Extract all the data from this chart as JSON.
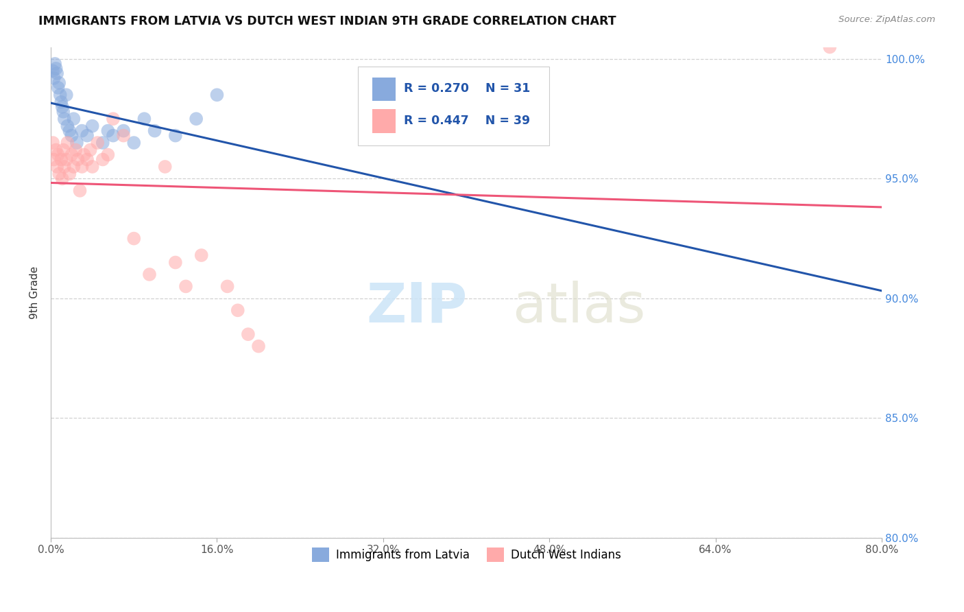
{
  "title": "IMMIGRANTS FROM LATVIA VS DUTCH WEST INDIAN 9TH GRADE CORRELATION CHART",
  "source": "Source: ZipAtlas.com",
  "ylabel": "9th Grade",
  "xlim": [
    0.0,
    80.0
  ],
  "ylim": [
    80.0,
    100.5
  ],
  "yticks": [
    80.0,
    85.0,
    90.0,
    95.0,
    100.0
  ],
  "xticks": [
    0.0,
    16.0,
    32.0,
    48.0,
    64.0,
    80.0
  ],
  "legend1_R": "0.270",
  "legend1_N": "31",
  "legend2_R": "0.447",
  "legend2_N": "39",
  "legend_label1": "Immigrants from Latvia",
  "legend_label2": "Dutch West Indians",
  "blue_color": "#88AADD",
  "pink_color": "#FFAAAA",
  "blue_line_color": "#2255AA",
  "pink_line_color": "#EE5577",
  "blue_scatter_x": [
    0.2,
    0.3,
    0.4,
    0.5,
    0.6,
    0.7,
    0.8,
    0.9,
    1.0,
    1.1,
    1.2,
    1.3,
    1.5,
    1.6,
    1.8,
    2.0,
    2.2,
    2.5,
    3.0,
    3.5,
    4.0,
    5.0,
    5.5,
    6.0,
    7.0,
    8.0,
    9.0,
    10.0,
    12.0,
    14.0,
    16.0
  ],
  "blue_scatter_y": [
    99.5,
    99.2,
    99.8,
    99.6,
    99.4,
    98.8,
    99.0,
    98.5,
    98.2,
    98.0,
    97.8,
    97.5,
    98.5,
    97.2,
    97.0,
    96.8,
    97.5,
    96.5,
    97.0,
    96.8,
    97.2,
    96.5,
    97.0,
    96.8,
    97.0,
    96.5,
    97.5,
    97.0,
    96.8,
    97.5,
    98.5
  ],
  "pink_scatter_x": [
    0.2,
    0.3,
    0.5,
    0.6,
    0.7,
    0.8,
    1.0,
    1.1,
    1.2,
    1.3,
    1.5,
    1.6,
    1.8,
    2.0,
    2.2,
    2.4,
    2.6,
    2.8,
    3.0,
    3.2,
    3.5,
    3.8,
    4.0,
    4.5,
    5.0,
    5.5,
    6.0,
    7.0,
    8.0,
    9.5,
    11.0,
    12.0,
    13.0,
    14.5,
    17.0,
    18.0,
    19.0,
    20.0,
    75.0
  ],
  "pink_scatter_y": [
    96.5,
    95.8,
    96.2,
    95.5,
    96.0,
    95.2,
    95.8,
    95.0,
    96.2,
    95.5,
    95.8,
    96.5,
    95.2,
    96.0,
    95.5,
    96.2,
    95.8,
    94.5,
    95.5,
    96.0,
    95.8,
    96.2,
    95.5,
    96.5,
    95.8,
    96.0,
    97.5,
    96.8,
    92.5,
    91.0,
    95.5,
    91.5,
    90.5,
    91.8,
    90.5,
    89.5,
    88.5,
    88.0,
    100.5
  ]
}
